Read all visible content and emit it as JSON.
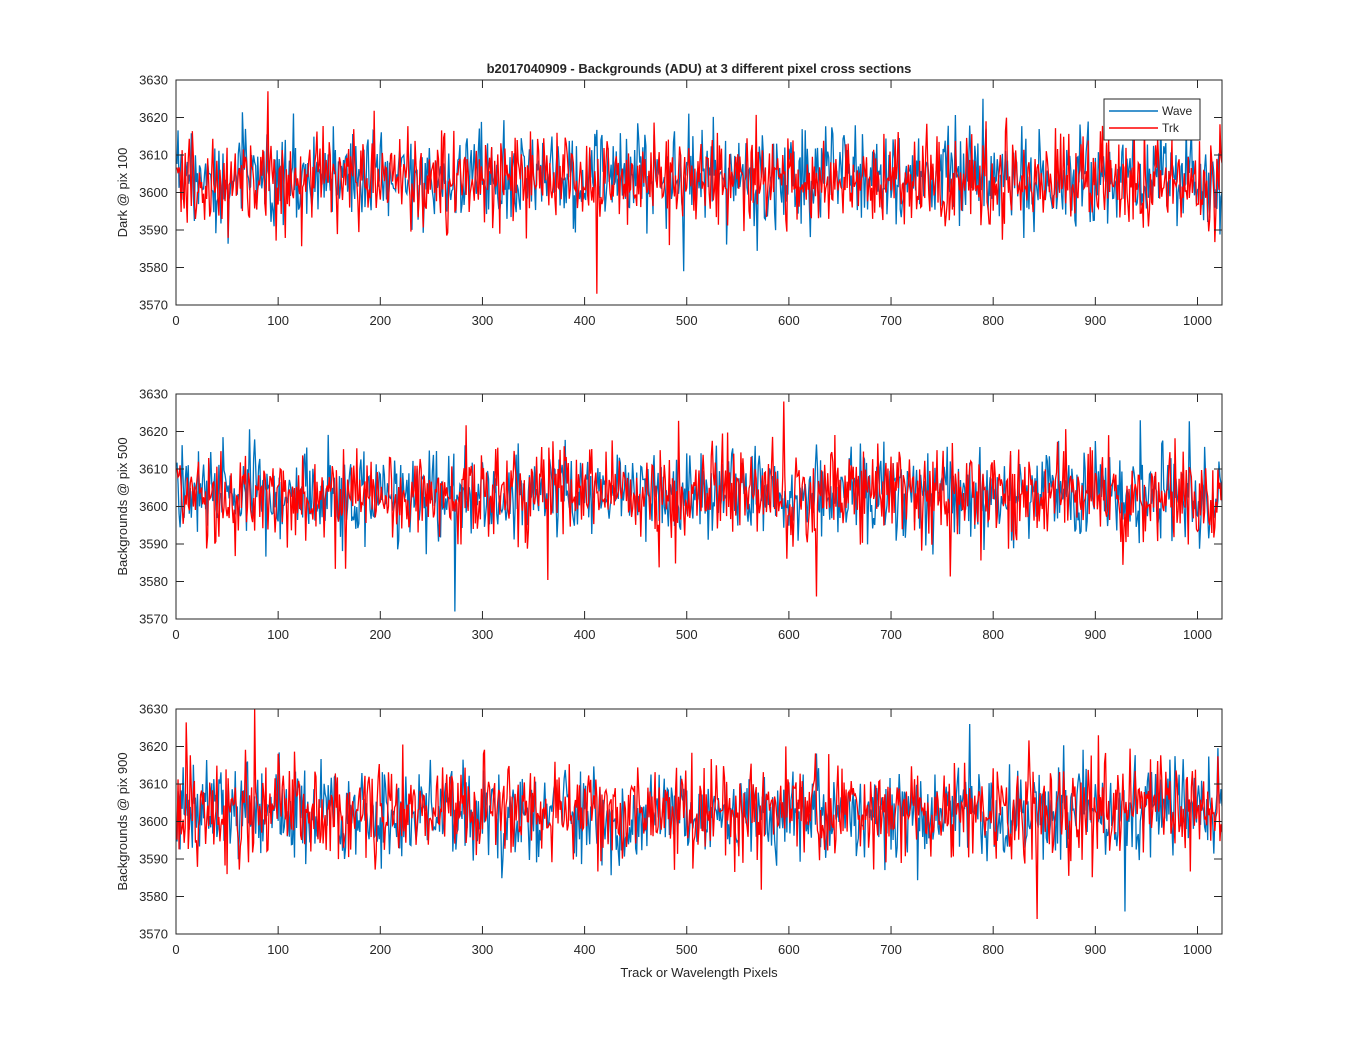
{
  "figure": {
    "title": "b2017040909 - Backgrounds (ADU) at 3 different pixel cross sections",
    "xlabel": "Track or Wavelength Pixels",
    "legend": {
      "placement": "top-right",
      "entries": [
        "Wave",
        "Trk"
      ]
    }
  },
  "chart_data": [
    {
      "type": "line",
      "title": "b2017040909 - Backgrounds (ADU) at 3 different pixel cross sections",
      "xlabel": "",
      "ylabel": "Dark @ pix 100",
      "xlim": [
        0,
        1024
      ],
      "ylim": [
        3570,
        3630
      ],
      "xticks": [
        0,
        100,
        200,
        300,
        400,
        500,
        600,
        700,
        800,
        900,
        1000
      ],
      "yticks": [
        3570,
        3580,
        3590,
        3600,
        3610,
        3620,
        3630
      ],
      "legend": "top-right",
      "grid": false,
      "series": [
        {
          "name": "Wave",
          "color": "#0072BD",
          "mean": 3604,
          "std": 6.5,
          "min": 3579,
          "max": 3625,
          "n_points": 1024,
          "noise": "random"
        },
        {
          "name": "Trk",
          "color": "#FF0000",
          "mean": 3603,
          "std": 6.2,
          "min": 3573,
          "max": 3627,
          "n_points": 1024,
          "noise": "random"
        }
      ]
    },
    {
      "type": "line",
      "xlabel": "",
      "ylabel": "Backgrounds @ pix 500",
      "xlim": [
        0,
        1024
      ],
      "ylim": [
        3570,
        3630
      ],
      "xticks": [
        0,
        100,
        200,
        300,
        400,
        500,
        600,
        700,
        800,
        900,
        1000
      ],
      "yticks": [
        3570,
        3580,
        3590,
        3600,
        3610,
        3620,
        3630
      ],
      "grid": false,
      "series": [
        {
          "name": "Wave",
          "color": "#0072BD",
          "mean": 3603,
          "std": 6.0,
          "min": 3572,
          "max": 3623,
          "n_points": 1024,
          "noise": "random"
        },
        {
          "name": "Trk",
          "color": "#FF0000",
          "mean": 3603,
          "std": 6.3,
          "min": 3576,
          "max": 3628,
          "n_points": 1024,
          "noise": "random"
        }
      ]
    },
    {
      "type": "line",
      "xlabel": "Track or Wavelength Pixels",
      "ylabel": "Backgrounds @ pix 900",
      "xlim": [
        0,
        1024
      ],
      "ylim": [
        3570,
        3630
      ],
      "xticks": [
        0,
        100,
        200,
        300,
        400,
        500,
        600,
        700,
        800,
        900,
        1000
      ],
      "yticks": [
        3570,
        3580,
        3590,
        3600,
        3610,
        3620,
        3630
      ],
      "grid": false,
      "series": [
        {
          "name": "Wave",
          "color": "#0072BD",
          "mean": 3602,
          "std": 6.0,
          "min": 3576,
          "max": 3626,
          "n_points": 1024,
          "noise": "random"
        },
        {
          "name": "Trk",
          "color": "#FF0000",
          "mean": 3603,
          "std": 6.5,
          "min": 3574,
          "max": 3630,
          "n_points": 1024,
          "noise": "random"
        }
      ]
    }
  ]
}
